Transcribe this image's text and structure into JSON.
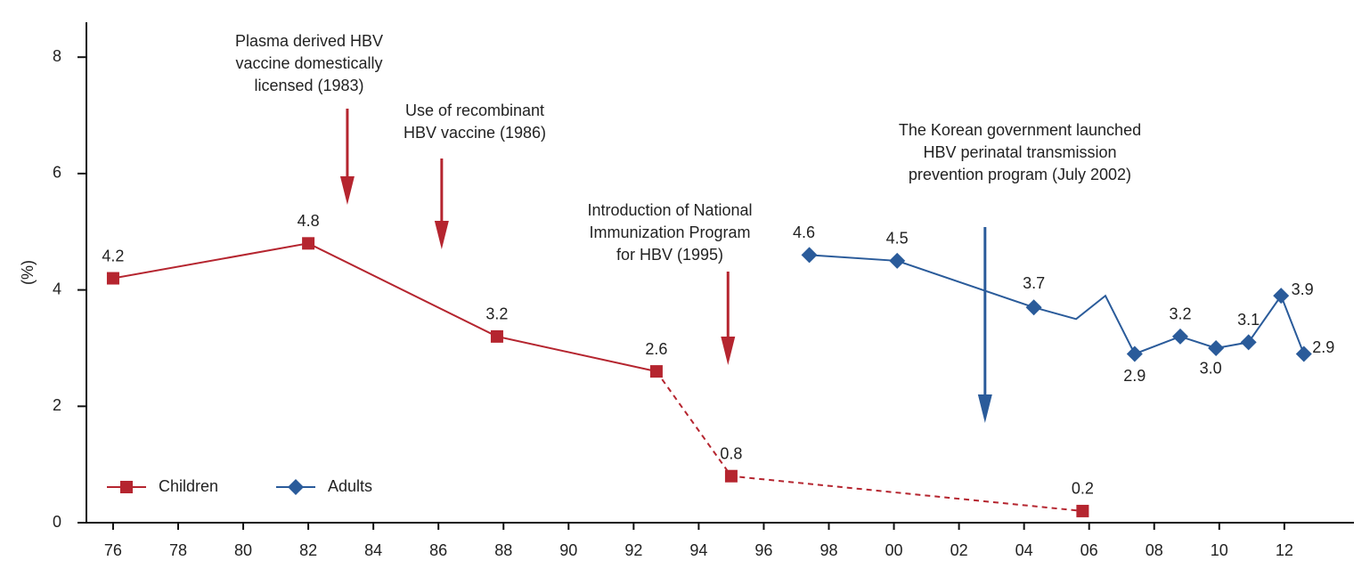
{
  "chart_data": {
    "type": "line",
    "ylabel": "(%)",
    "xlim": [
      1975.18,
      2014.14
    ],
    "ylim": [
      0,
      8.6
    ],
    "xticks": [
      {
        "value": 1976,
        "label": "76"
      },
      {
        "value": 1978,
        "label": "78"
      },
      {
        "value": 1980,
        "label": "80"
      },
      {
        "value": 1982,
        "label": "82"
      },
      {
        "value": 1984,
        "label": "84"
      },
      {
        "value": 1986,
        "label": "86"
      },
      {
        "value": 1988,
        "label": "88"
      },
      {
        "value": 1990,
        "label": "90"
      },
      {
        "value": 1992,
        "label": "92"
      },
      {
        "value": 1994,
        "label": "94"
      },
      {
        "value": 1996,
        "label": "96"
      },
      {
        "value": 1998,
        "label": "98"
      },
      {
        "value": 2000,
        "label": "00"
      },
      {
        "value": 2002,
        "label": "02"
      },
      {
        "value": 2004,
        "label": "04"
      },
      {
        "value": 2006,
        "label": "06"
      },
      {
        "value": 2008,
        "label": "08"
      },
      {
        "value": 2010,
        "label": "10"
      },
      {
        "value": 2012,
        "label": "12"
      }
    ],
    "yticks": [
      0,
      2,
      4,
      6,
      8
    ],
    "legend": "lower left",
    "series": [
      {
        "name": "Children",
        "color": "#b5252f",
        "marker": "square",
        "dashed_after": 3,
        "x": [
          1976,
          1982,
          1987.8,
          1992.7,
          1995,
          2005.8
        ],
        "values": [
          4.2,
          4.8,
          3.2,
          2.6,
          0.8,
          0.2
        ],
        "value_labels": [
          "4.2",
          "4.8",
          "3.2",
          "2.6",
          "0.8",
          "0.2"
        ]
      },
      {
        "name": "Adults",
        "color": "#2a5b9a",
        "marker": "diamond",
        "x": [
          1997.4,
          2000.1,
          2004.3,
          2005.6,
          2006.5,
          2007.4,
          2008.8,
          2009.9,
          2010.9,
          2011.9,
          2012.6
        ],
        "values": [
          4.6,
          4.5,
          3.7,
          3.5,
          3.9,
          2.9,
          3.2,
          3.0,
          3.1,
          3.9,
          2.9
        ],
        "value_labels": [
          "4.6",
          "4.5",
          "3.7",
          null,
          null,
          "2.9",
          "3.2",
          "3.0",
          "3.1",
          "3.9",
          "2.9"
        ]
      }
    ],
    "annotations": [
      {
        "text": [
          "Plasma derived HBV",
          "vaccine domestically",
          "licensed (1983)"
        ],
        "x": 1983.2,
        "color": "#b5252f"
      },
      {
        "text": [
          "Use of recombinant",
          "HBV vaccine (1986)"
        ],
        "x": 1986.1,
        "color": "#b5252f"
      },
      {
        "text": [
          "Introduction of National",
          "Immunization Program",
          "for HBV (1995)"
        ],
        "x": 1994.9,
        "color": "#b5252f"
      },
      {
        "text": [
          "The Korean government launched",
          "HBV perinatal transmission",
          "prevention program (July 2002)"
        ],
        "x": 2002.8,
        "color": "#2a5b9a"
      }
    ]
  }
}
